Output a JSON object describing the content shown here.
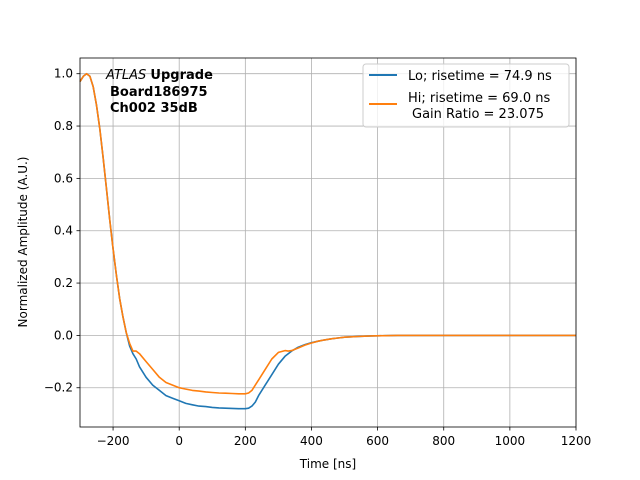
{
  "chart_data": {
    "type": "line",
    "xlabel": "Time [ns]",
    "ylabel": "Normalized Amplitude (A.U.)",
    "xlim": [
      -300,
      1200
    ],
    "ylim": [
      -0.35,
      1.06
    ],
    "xticks": [
      -200,
      0,
      200,
      400,
      600,
      800,
      1000,
      1200
    ],
    "yticks": [
      -0.2,
      0.0,
      0.2,
      0.4,
      0.6,
      0.8,
      1.0
    ],
    "xtick_labels": [
      "−200",
      "0",
      "200",
      "400",
      "600",
      "800",
      "1000",
      "1200"
    ],
    "ytick_labels": [
      "−0.2",
      "0.0",
      "0.2",
      "0.4",
      "0.6",
      "0.8",
      "1.0"
    ],
    "grid": true,
    "legend_position": "top-right",
    "annotation": {
      "experiment": "ATLAS",
      "experiment_suffix": "Upgrade",
      "board": "Board186975",
      "channel": "Ch002 35dB"
    },
    "series": [
      {
        "name": "Lo; risetime = 74.9 ns",
        "color": "#1f77b4",
        "x": [
          -300,
          -290,
          -280,
          -270,
          -260,
          -250,
          -240,
          -230,
          -220,
          -210,
          -200,
          -190,
          -180,
          -170,
          -160,
          -150,
          -140,
          -130,
          -120,
          -100,
          -80,
          -60,
          -40,
          -20,
          0,
          20,
          40,
          60,
          80,
          100,
          120,
          140,
          160,
          180,
          200,
          210,
          220,
          230,
          240,
          260,
          280,
          300,
          320,
          340,
          360,
          380,
          400,
          420,
          440,
          460,
          480,
          500,
          540,
          580,
          620,
          660,
          700,
          800,
          900,
          1000,
          1100,
          1200
        ],
        "y": [
          0.97,
          0.99,
          1.0,
          0.99,
          0.95,
          0.88,
          0.79,
          0.68,
          0.56,
          0.44,
          0.33,
          0.23,
          0.14,
          0.07,
          0.01,
          -0.04,
          -0.07,
          -0.09,
          -0.12,
          -0.16,
          -0.19,
          -0.21,
          -0.23,
          -0.24,
          -0.25,
          -0.26,
          -0.265,
          -0.27,
          -0.272,
          -0.275,
          -0.277,
          -0.278,
          -0.279,
          -0.28,
          -0.28,
          -0.278,
          -0.27,
          -0.255,
          -0.23,
          -0.19,
          -0.15,
          -0.11,
          -0.08,
          -0.06,
          -0.045,
          -0.035,
          -0.028,
          -0.022,
          -0.017,
          -0.013,
          -0.01,
          -0.007,
          -0.004,
          -0.002,
          -0.001,
          0.0,
          0.0,
          0.0,
          0.0,
          0.0,
          0.0,
          0.0
        ]
      },
      {
        "name": "Hi; risetime = 69.0 ns",
        "name_line2": "Gain Ratio = 23.075",
        "color": "#ff7f0e",
        "x": [
          -300,
          -290,
          -280,
          -270,
          -260,
          -250,
          -240,
          -230,
          -220,
          -210,
          -200,
          -190,
          -180,
          -170,
          -160,
          -150,
          -140,
          -130,
          -120,
          -100,
          -80,
          -60,
          -40,
          -20,
          0,
          20,
          40,
          60,
          80,
          100,
          120,
          140,
          160,
          180,
          200,
          210,
          220,
          230,
          240,
          260,
          280,
          300,
          320,
          330,
          340,
          360,
          380,
          400,
          420,
          440,
          460,
          480,
          500,
          540,
          580,
          620,
          660,
          700,
          800,
          900,
          1000,
          1100,
          1200
        ],
        "y": [
          0.97,
          0.99,
          1.0,
          0.99,
          0.95,
          0.88,
          0.79,
          0.68,
          0.56,
          0.44,
          0.33,
          0.23,
          0.14,
          0.07,
          0.01,
          -0.03,
          -0.06,
          -0.06,
          -0.07,
          -0.1,
          -0.13,
          -0.16,
          -0.18,
          -0.19,
          -0.2,
          -0.205,
          -0.21,
          -0.213,
          -0.216,
          -0.218,
          -0.22,
          -0.221,
          -0.222,
          -0.223,
          -0.223,
          -0.22,
          -0.21,
          -0.19,
          -0.17,
          -0.13,
          -0.09,
          -0.065,
          -0.058,
          -0.06,
          -0.058,
          -0.048,
          -0.037,
          -0.029,
          -0.022,
          -0.017,
          -0.013,
          -0.01,
          -0.007,
          -0.004,
          -0.002,
          -0.001,
          0.0,
          0.0,
          0.0,
          0.0,
          0.0,
          0.0,
          0.0
        ]
      }
    ]
  }
}
